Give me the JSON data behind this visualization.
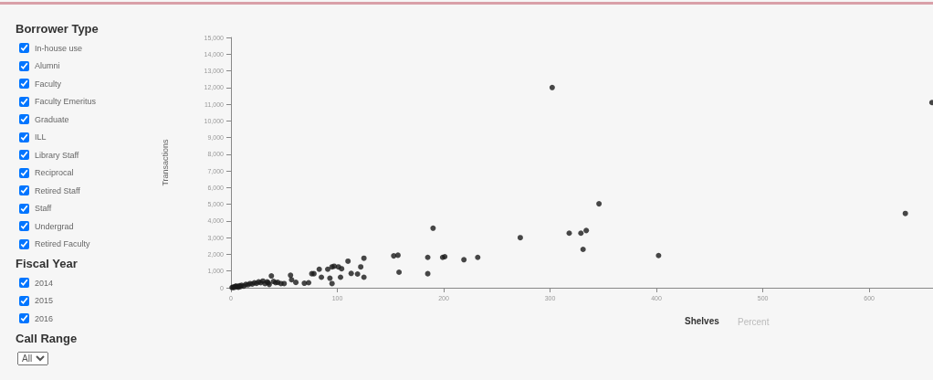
{
  "chart_data": [
    {
      "type": "other",
      "title": "Borrower Type",
      "categories": [
        "In-house use",
        "Alumni",
        "Faculty",
        "Faculty Emeritus",
        "Graduate",
        "ILL",
        "Library Staff",
        "Reciprocal",
        "Retired Staff",
        "Staff",
        "Undergrad",
        "Retired Faculty"
      ]
    },
    {
      "type": "other",
      "title": "Fiscal Year",
      "categories": [
        "2014",
        "2015",
        "2016"
      ]
    },
    {
      "type": "other",
      "title": "Call Range",
      "categories": [
        "All"
      ]
    },
    {
      "type": "scatter",
      "xlabel": "Shelves",
      "ylabel": "Transactions",
      "annotations": [
        "Percent"
      ],
      "color": "#1a1a1a",
      "marker": "circle",
      "grid": false,
      "xlim": [
        0,
        660
      ],
      "xticks": [
        0,
        100,
        200,
        300,
        400,
        500,
        600
      ],
      "ylim": [
        0,
        15000
      ],
      "yticks": [
        0,
        {
          "value": 1000,
          "label": "1,000"
        },
        {
          "value": 2000,
          "label": "2,000"
        },
        {
          "value": 3000,
          "label": "3,000"
        },
        {
          "value": 4000,
          "label": "4,000"
        },
        {
          "value": 5000,
          "label": "5,000"
        },
        {
          "value": 6000,
          "label": "6,000"
        },
        {
          "value": 7000,
          "label": "7,000"
        },
        {
          "value": 8000,
          "label": "8,000"
        },
        {
          "value": 9000,
          "label": "9,000"
        },
        {
          "value": 10000,
          "label": "10,000"
        },
        {
          "value": 11000,
          "label": "11,000"
        },
        {
          "value": 12000,
          "label": "12,000"
        },
        {
          "value": 13000,
          "label": "13,000"
        },
        {
          "value": 14000,
          "label": "14,000"
        },
        {
          "value": 15000,
          "label": "15,000"
        }
      ],
      "x": [
        1,
        2,
        3,
        4,
        5,
        6,
        7,
        8,
        9,
        10,
        12,
        14,
        16,
        18,
        20,
        22,
        24,
        26,
        28,
        30,
        32,
        34,
        36,
        40,
        44,
        50,
        35,
        42,
        38,
        47,
        56,
        57,
        61,
        69,
        73,
        76,
        78,
        85,
        95,
        93,
        83,
        91,
        95,
        101,
        104,
        97,
        103,
        113,
        119,
        125,
        122,
        125,
        110,
        153,
        157,
        158,
        185,
        185,
        190,
        199,
        201,
        219,
        232,
        272,
        302,
        318,
        329,
        331,
        334,
        346,
        402,
        634,
        659
      ],
      "values": [
        10,
        40,
        20,
        80,
        100,
        60,
        30,
        120,
        70,
        150,
        100,
        200,
        180,
        250,
        220,
        300,
        260,
        350,
        300,
        400,
        250,
        350,
        200,
        380,
        320,
        250,
        300,
        300,
        710,
        250,
        750,
        480,
        320,
        270,
        300,
        840,
        840,
        630,
        250,
        570,
        1110,
        1110,
        1250,
        1250,
        1140,
        1290,
        630,
        860,
        820,
        630,
        1250,
        1770,
        1590,
        1910,
        1950,
        930,
        1820,
        840,
        3570,
        1820,
        1860,
        1680,
        1820,
        3000,
        12000,
        3270,
        3270,
        2300,
        3430,
        5030,
        1930,
        4450,
        11100
      ]
    }
  ]
}
